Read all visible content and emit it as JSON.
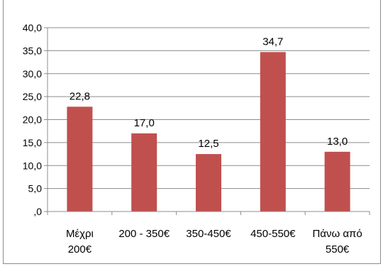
{
  "chart_data": {
    "type": "bar",
    "title": "",
    "xlabel": "",
    "ylabel": "",
    "categories": [
      [
        "Μέχρι",
        "200€"
      ],
      [
        "200 - 350€"
      ],
      [
        "350-450€"
      ],
      [
        "450-550€"
      ],
      [
        "Πάνω από",
        "550€"
      ]
    ],
    "values": [
      22.8,
      17.0,
      12.5,
      34.7,
      13.0
    ],
    "value_labels": [
      "22,8",
      "17,0",
      "12,5",
      "34,7",
      "13,0"
    ],
    "ylim": [
      0,
      40
    ],
    "yticks": [
      0,
      5,
      10,
      15,
      20,
      25,
      30,
      35,
      40
    ],
    "ytick_labels": [
      ",0",
      "5,0",
      "10,0",
      "15,0",
      "20,0",
      "25,0",
      "30,0",
      "35,0",
      "40,0"
    ],
    "grid": true,
    "legend": "none",
    "colors": {
      "bar": "#c0504d",
      "grid": "#8c8c8c",
      "axis": "#8c8c8c",
      "text": "#000000"
    }
  }
}
